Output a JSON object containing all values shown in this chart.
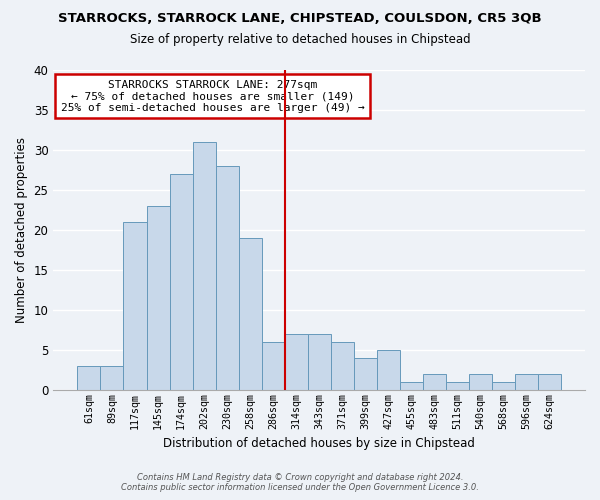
{
  "title": "STARROCKS, STARROCK LANE, CHIPSTEAD, COULSDON, CR5 3QB",
  "subtitle": "Size of property relative to detached houses in Chipstead",
  "xlabel": "Distribution of detached houses by size in Chipstead",
  "ylabel": "Number of detached properties",
  "bar_labels": [
    "61sqm",
    "89sqm",
    "117sqm",
    "145sqm",
    "174sqm",
    "202sqm",
    "230sqm",
    "258sqm",
    "286sqm",
    "314sqm",
    "343sqm",
    "371sqm",
    "399sqm",
    "427sqm",
    "455sqm",
    "483sqm",
    "511sqm",
    "540sqm",
    "568sqm",
    "596sqm",
    "624sqm"
  ],
  "bar_values": [
    3,
    3,
    21,
    23,
    27,
    31,
    28,
    19,
    6,
    7,
    7,
    6,
    4,
    5,
    1,
    2,
    1,
    2,
    1,
    2,
    2
  ],
  "bar_color": "#c8d8ea",
  "bar_edge_color": "#6699bb",
  "vline_x": 8.5,
  "vline_color": "#cc0000",
  "annotation_title": "STARROCKS STARROCK LANE: 277sqm",
  "annotation_line1": "← 75% of detached houses are smaller (149)",
  "annotation_line2": "25% of semi-detached houses are larger (49) →",
  "annotation_box_facecolor": "#ffffff",
  "annotation_box_edgecolor": "#cc0000",
  "ylim": [
    0,
    40
  ],
  "yticks": [
    0,
    5,
    10,
    15,
    20,
    25,
    30,
    35,
    40
  ],
  "background_color": "#eef2f7",
  "grid_color": "#ffffff",
  "footer_line1": "Contains HM Land Registry data © Crown copyright and database right 2024.",
  "footer_line2": "Contains public sector information licensed under the Open Government Licence 3.0."
}
